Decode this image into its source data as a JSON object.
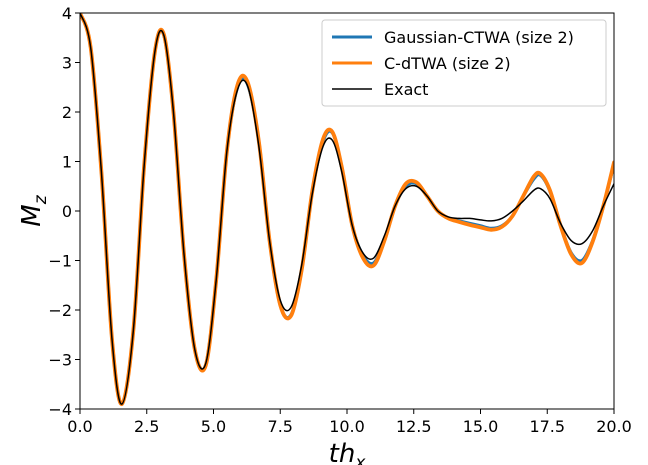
{
  "chart_data": {
    "type": "line",
    "title": "",
    "xlabel": "th",
    "xlabel_sub": "x",
    "ylabel": "M",
    "ylabel_sub": "z",
    "xlim": [
      0,
      20
    ],
    "ylim": [
      -4,
      4
    ],
    "xticks": [
      0,
      2.5,
      5,
      7.5,
      10,
      12.5,
      15,
      17.5,
      20
    ],
    "xtick_labels": [
      "0.0",
      "2.5",
      "5.0",
      "7.5",
      "10.0",
      "12.5",
      "15.0",
      "17.5",
      "20.0"
    ],
    "yticks": [
      -4,
      -3,
      -2,
      -1,
      0,
      1,
      2,
      3,
      4
    ],
    "ytick_labels": [
      "−4",
      "−3",
      "−2",
      "−1",
      "0",
      "1",
      "2",
      "3",
      "4"
    ],
    "grid": false,
    "legend_position": "top-right",
    "series": [
      {
        "name": "Gaussian-CTWA (size 2)",
        "color": "#1f77b4",
        "x": [
          0,
          0.4,
          0.8,
          1.2,
          1.57,
          2.0,
          2.4,
          2.8,
          3.14,
          3.5,
          3.9,
          4.3,
          4.71,
          5.1,
          5.5,
          5.9,
          6.28,
          6.7,
          7.1,
          7.5,
          7.9,
          8.3,
          8.7,
          9.1,
          9.45,
          9.8,
          10.2,
          10.6,
          11.0,
          11.4,
          11.8,
          12.2,
          12.6,
          13.0,
          13.4,
          13.8,
          14.2,
          14.6,
          15.0,
          15.4,
          15.8,
          16.2,
          16.6,
          17.0,
          17.25,
          17.6,
          18.0,
          18.4,
          18.8,
          19.2,
          19.6,
          20.0
        ],
        "y": [
          4.0,
          3.3,
          0.8,
          -2.6,
          -3.9,
          -2.4,
          0.9,
          3.2,
          3.55,
          2.0,
          -0.9,
          -2.8,
          -3.1,
          -1.4,
          1.2,
          2.5,
          2.55,
          1.4,
          -0.6,
          -1.9,
          -2.1,
          -1.2,
          0.4,
          1.4,
          1.58,
          0.9,
          -0.3,
          -0.9,
          -1.05,
          -0.6,
          0.1,
          0.5,
          0.55,
          0.3,
          0.0,
          -0.15,
          -0.2,
          -0.25,
          -0.3,
          -0.35,
          -0.3,
          -0.1,
          0.3,
          0.65,
          0.72,
          0.4,
          -0.3,
          -0.85,
          -1.0,
          -0.6,
          0.1,
          0.95
        ]
      },
      {
        "name": "C-dTWA (size 2)",
        "color": "#ff7f0e",
        "x": [
          0,
          0.4,
          0.8,
          1.2,
          1.57,
          2.0,
          2.4,
          2.8,
          3.14,
          3.5,
          3.9,
          4.3,
          4.71,
          5.1,
          5.5,
          5.9,
          6.28,
          6.7,
          7.1,
          7.5,
          7.9,
          8.3,
          8.7,
          9.1,
          9.45,
          9.8,
          10.2,
          10.6,
          11.0,
          11.4,
          11.8,
          12.2,
          12.6,
          13.0,
          13.4,
          13.8,
          14.2,
          14.6,
          15.0,
          15.4,
          15.8,
          16.2,
          16.6,
          17.0,
          17.25,
          17.6,
          18.0,
          18.4,
          18.8,
          19.2,
          19.6,
          20.0
        ],
        "y": [
          4.0,
          3.3,
          0.8,
          -2.6,
          -3.9,
          -2.4,
          0.9,
          3.2,
          3.57,
          2.0,
          -0.9,
          -2.8,
          -3.12,
          -1.4,
          1.2,
          2.55,
          2.6,
          1.4,
          -0.6,
          -1.9,
          -2.12,
          -1.2,
          0.4,
          1.45,
          1.6,
          0.9,
          -0.3,
          -0.95,
          -1.1,
          -0.6,
          0.1,
          0.55,
          0.58,
          0.3,
          0.0,
          -0.15,
          -0.22,
          -0.28,
          -0.33,
          -0.38,
          -0.32,
          -0.1,
          0.3,
          0.7,
          0.75,
          0.42,
          -0.3,
          -0.88,
          -1.05,
          -0.62,
          0.1,
          0.98
        ]
      },
      {
        "name": "Exact",
        "color": "#000000",
        "x": [
          0,
          0.4,
          0.8,
          1.2,
          1.57,
          2.0,
          2.4,
          2.8,
          3.14,
          3.5,
          3.9,
          4.3,
          4.71,
          5.1,
          5.5,
          5.9,
          6.28,
          6.7,
          7.1,
          7.5,
          7.9,
          8.3,
          8.7,
          9.1,
          9.45,
          9.8,
          10.2,
          10.6,
          11.0,
          11.4,
          11.8,
          12.2,
          12.6,
          13.0,
          13.4,
          13.8,
          14.2,
          14.6,
          15.0,
          15.4,
          15.8,
          16.2,
          16.6,
          17.0,
          17.25,
          17.6,
          18.0,
          18.4,
          18.8,
          19.2,
          19.6,
          20.0
        ],
        "y": [
          4.0,
          3.3,
          0.8,
          -2.6,
          -3.9,
          -2.4,
          0.9,
          3.2,
          3.55,
          2.0,
          -0.9,
          -2.8,
          -3.08,
          -1.4,
          1.2,
          2.45,
          2.52,
          1.3,
          -0.6,
          -1.8,
          -1.95,
          -1.1,
          0.35,
          1.3,
          1.43,
          0.8,
          -0.3,
          -0.85,
          -0.95,
          -0.5,
          0.1,
          0.45,
          0.5,
          0.3,
          0.0,
          -0.12,
          -0.15,
          -0.15,
          -0.18,
          -0.2,
          -0.15,
          0.0,
          0.2,
          0.42,
          0.45,
          0.25,
          -0.25,
          -0.6,
          -0.66,
          -0.4,
          0.1,
          0.55
        ]
      }
    ]
  }
}
